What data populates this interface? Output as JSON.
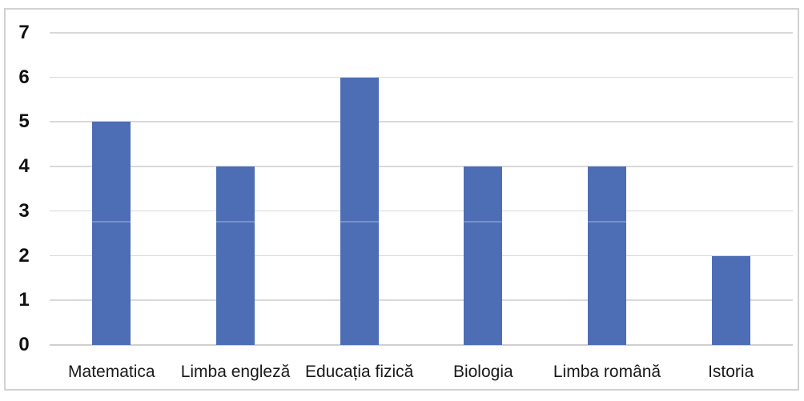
{
  "chart_data": {
    "type": "bar",
    "title": "",
    "xlabel": "",
    "ylabel": "",
    "categories": [
      "Matematica",
      "Limba engleză",
      "Educația fizică",
      "Biologia",
      "Limba română",
      "Istoria"
    ],
    "values": [
      5,
      4,
      6,
      4,
      4,
      2
    ],
    "ylim": [
      0,
      7
    ],
    "yticks": [
      0,
      1,
      2,
      3,
      4,
      5,
      6,
      7
    ],
    "grid": true,
    "legend": false,
    "bar_color": "#4d6db5",
    "gridline_color": "#d9d9d9",
    "axis_line_color": "#cfcfcf",
    "tick_label_color": "#111111",
    "category_label_color": "#1a1a1a",
    "frame_border_color": "#d2d2d2",
    "background_color": "#ffffff"
  }
}
